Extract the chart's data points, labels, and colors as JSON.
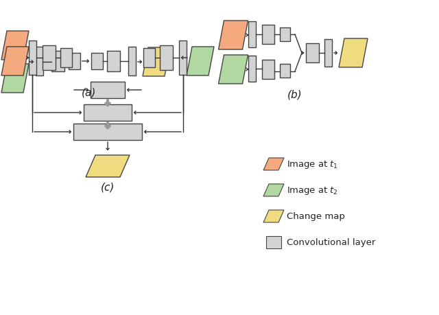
{
  "bg_color": "#ffffff",
  "orange_color": "#F5A97F",
  "green_color": "#B0D8A0",
  "yellow_color": "#F0DC80",
  "gray_color": "#D3D3D3",
  "gray_dark": "#AAAAAA",
  "edge_color": "#444444",
  "arrow_color": "#333333",
  "gray_arrow_color": "#999999",
  "legend_items": [
    {
      "label": "Image at $t_1$",
      "color": "#F5A97F"
    },
    {
      "label": "Image at $t_2$",
      "color": "#B0D8A0"
    },
    {
      "label": "Change map",
      "color": "#F0DC80"
    },
    {
      "label": "Convolutional layer",
      "color": "#D3D3D3"
    }
  ],
  "caption_a": "(a)",
  "caption_b": "(b)",
  "caption_c": "(c)"
}
